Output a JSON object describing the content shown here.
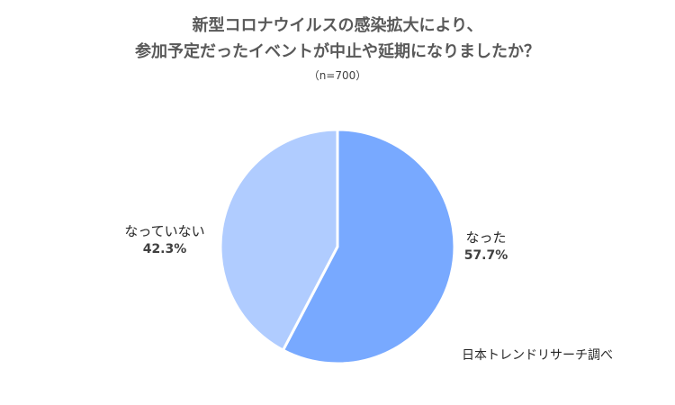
{
  "chart_data": {
    "type": "pie",
    "title_lines": [
      "新型コロナウイルスの感染拡大により、",
      "参加予定だったイベントが中止や延期になりましたか？"
    ],
    "subtitle": "（n=700）",
    "slices": [
      {
        "label": "なった",
        "value": 57.7,
        "value_label": "57.7%",
        "color": "#78A9FF"
      },
      {
        "label": "なっていない",
        "value": 42.3,
        "value_label": "42.3%",
        "color": "#B0CCFF"
      }
    ],
    "start_angle_deg": 0,
    "direction": "clockwise",
    "slice_border_color": "#ffffff"
  },
  "source": "日本トレンドリサーチ調べ"
}
